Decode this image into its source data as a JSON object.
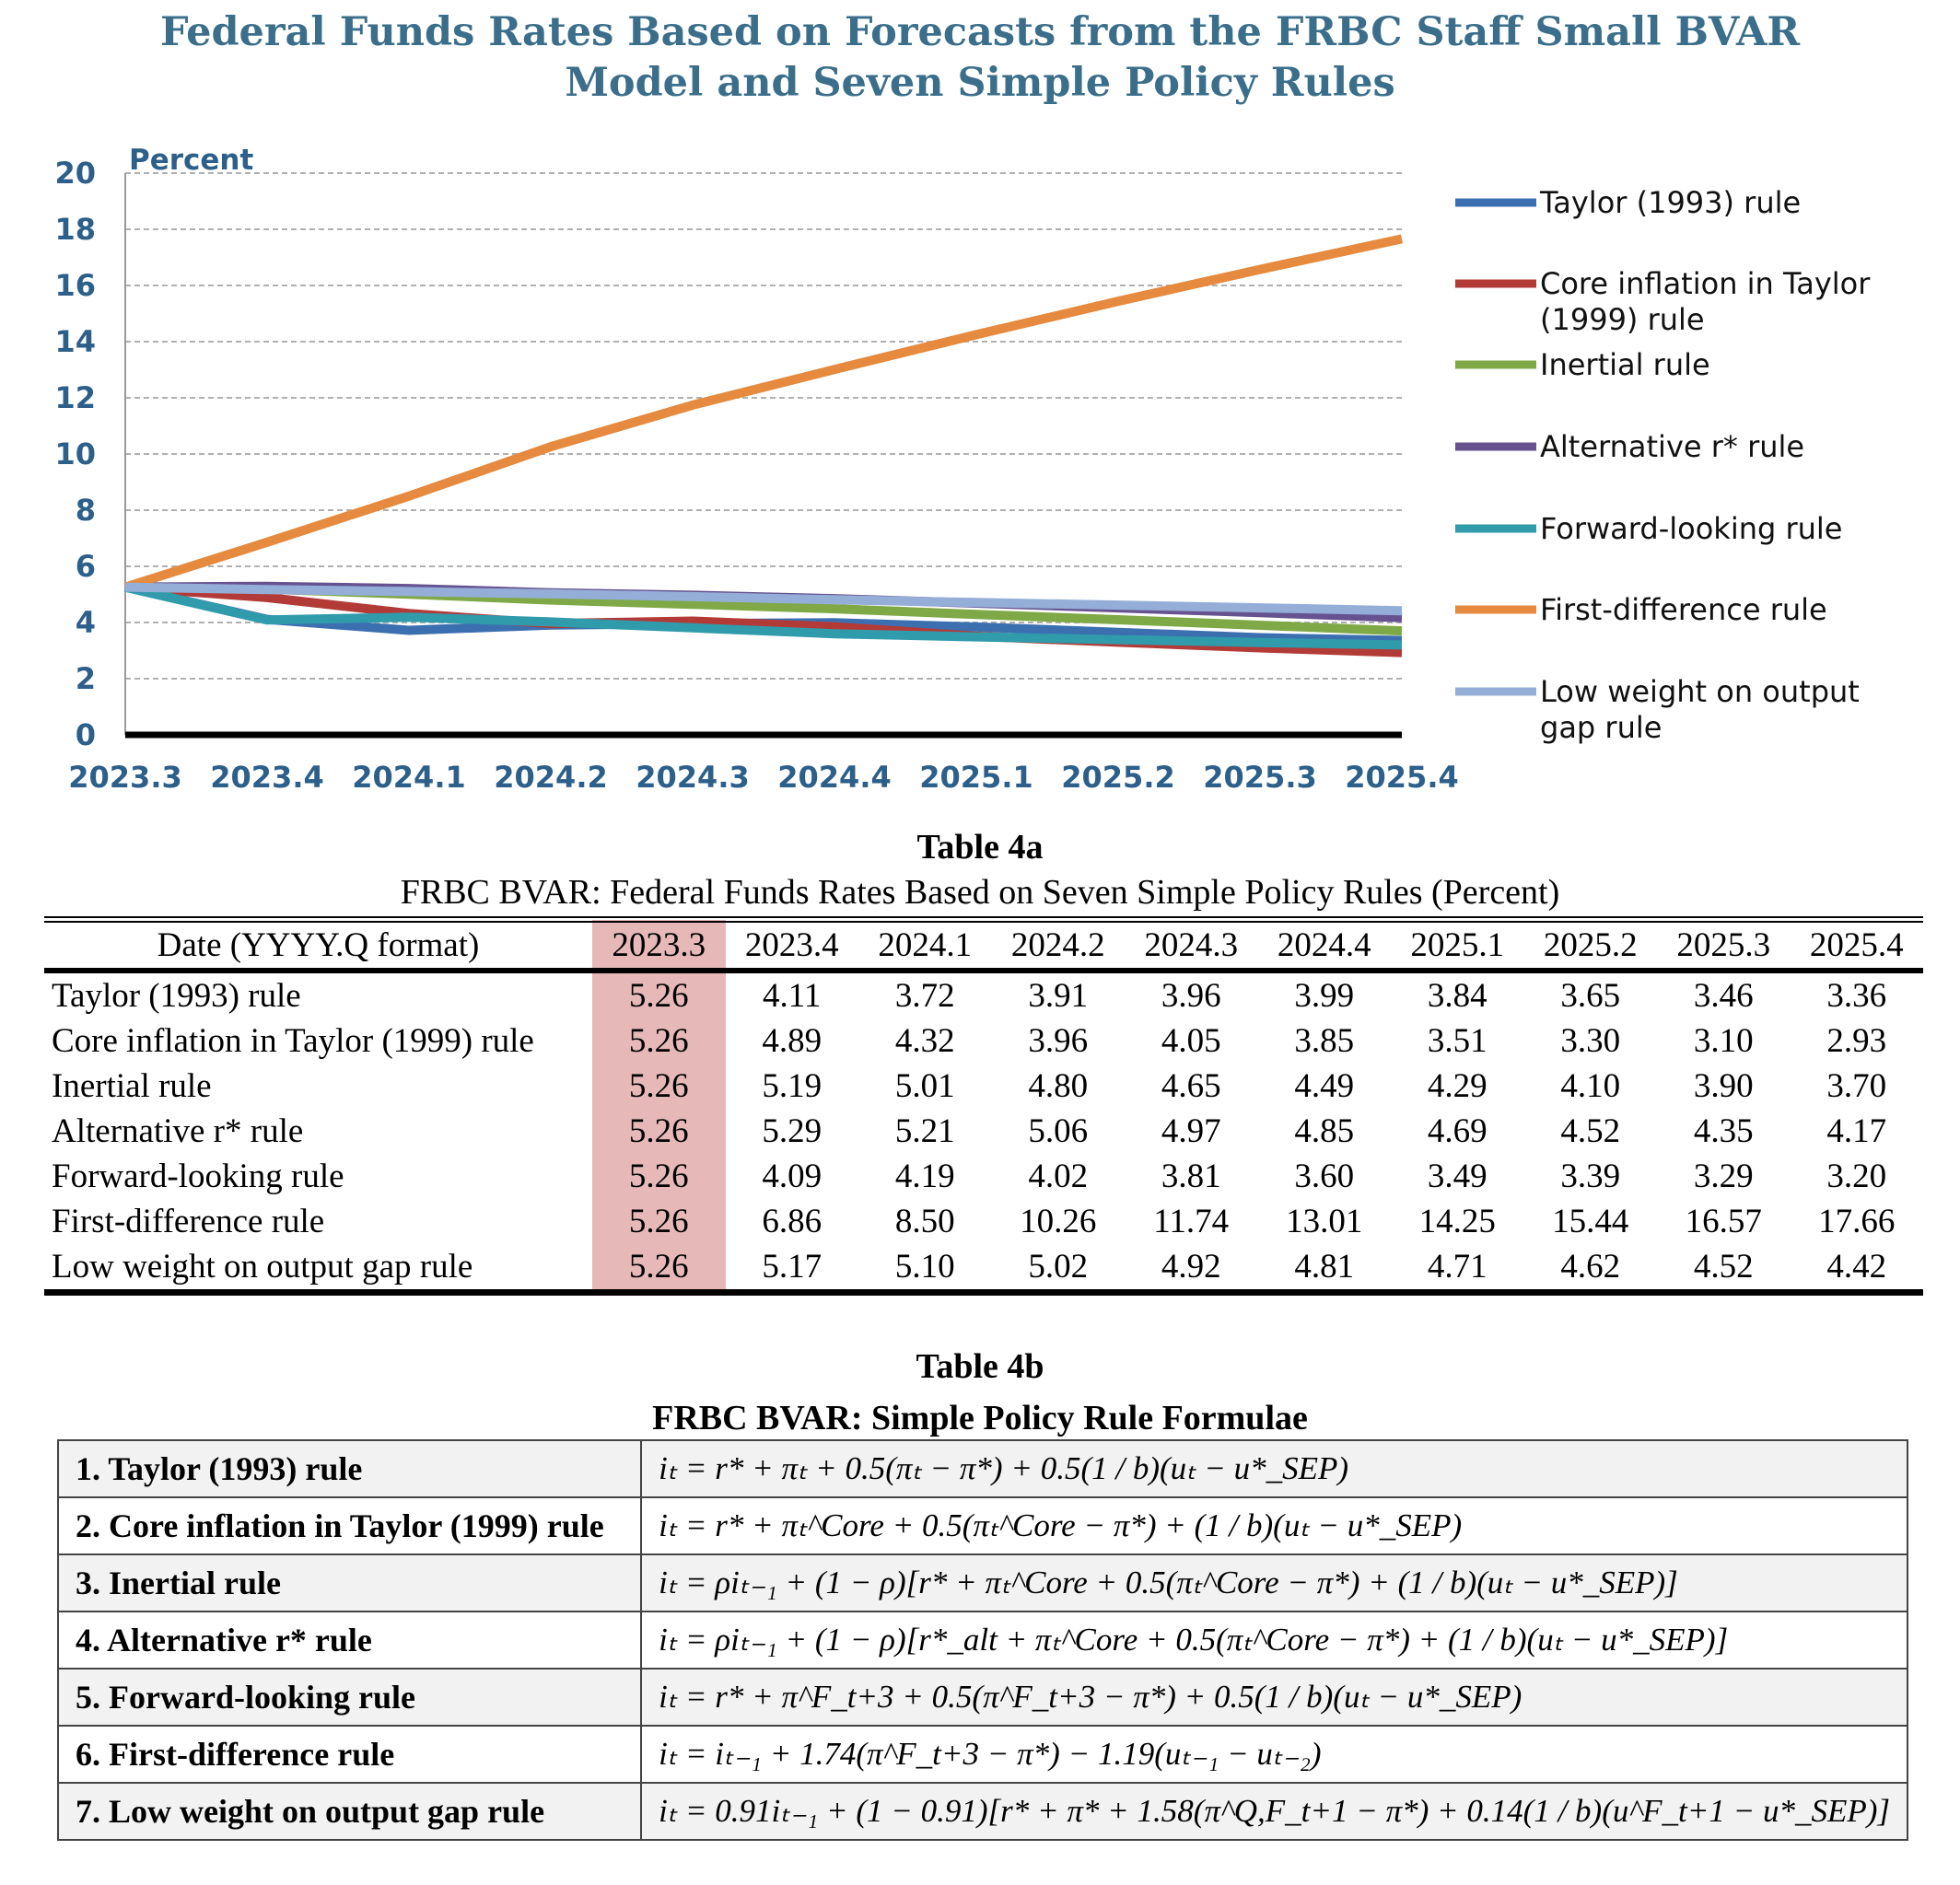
{
  "chart_data": {
    "type": "line",
    "title_lines": [
      "Federal Funds Rates Based on Forecasts from the FRBC Staff Small BVAR",
      "Model and Seven Simple Policy Rules"
    ],
    "ylabel": "Percent",
    "ylim": [
      0,
      20
    ],
    "yticks": [
      0,
      2,
      4,
      6,
      8,
      10,
      12,
      14,
      16,
      18,
      20
    ],
    "grid": true,
    "legend": "right",
    "x": [
      "2023.3",
      "2023.4",
      "2024.1",
      "2024.2",
      "2024.3",
      "2024.4",
      "2025.1",
      "2025.2",
      "2025.3",
      "2025.4"
    ],
    "series": [
      {
        "name": "Taylor (1993) rule",
        "color": "#3b6fb0",
        "values": [
          5.26,
          4.11,
          3.72,
          3.91,
          3.96,
          3.99,
          3.84,
          3.65,
          3.46,
          3.36
        ]
      },
      {
        "name": "Core inflation in Taylor (1999) rule",
        "color": "#b23b38",
        "values": [
          5.26,
          4.89,
          4.32,
          3.96,
          4.05,
          3.85,
          3.51,
          3.3,
          3.1,
          2.93
        ]
      },
      {
        "name": "Inertial rule",
        "color": "#7fa846",
        "values": [
          5.26,
          5.19,
          5.01,
          4.8,
          4.65,
          4.49,
          4.29,
          4.1,
          3.9,
          3.7
        ]
      },
      {
        "name": "Alternative r* rule",
        "color": "#66528f",
        "values": [
          5.26,
          5.29,
          5.21,
          5.06,
          4.97,
          4.85,
          4.69,
          4.52,
          4.35,
          4.17
        ]
      },
      {
        "name": "Forward-looking rule",
        "color": "#2f9bab",
        "values": [
          5.26,
          4.09,
          4.19,
          4.02,
          3.81,
          3.6,
          3.49,
          3.39,
          3.29,
          3.2
        ]
      },
      {
        "name": "First-difference rule",
        "color": "#e58a3e",
        "values": [
          5.26,
          6.86,
          8.5,
          10.26,
          11.74,
          13.01,
          14.25,
          15.44,
          16.57,
          17.66
        ]
      },
      {
        "name": "Low weight on output gap rule",
        "color": "#94aed8",
        "values": [
          5.26,
          5.17,
          5.1,
          5.02,
          4.92,
          4.81,
          4.71,
          4.62,
          4.52,
          4.42
        ]
      }
    ],
    "legend_lines": [
      [
        "Taylor (1993) rule"
      ],
      [
        "Core inflation in Taylor",
        "(1999) rule"
      ],
      [
        "Inertial rule"
      ],
      [
        "Alternative r* rule"
      ],
      [
        "Forward-looking rule"
      ],
      [
        "First-difference rule"
      ],
      [
        "Low weight on output",
        "gap rule"
      ]
    ]
  },
  "table4a": {
    "title": "Table 4a",
    "subtitle": "FRBC BVAR: Federal Funds Rates Based on Seven Simple Policy Rules (Percent)",
    "header_label": "Date (YYYY.Q format)",
    "columns": [
      "2023.3",
      "2023.4",
      "2024.1",
      "2024.2",
      "2024.3",
      "2024.4",
      "2025.1",
      "2025.2",
      "2025.3",
      "2025.4"
    ],
    "highlight_color": "#e6b8b8",
    "rows": [
      {
        "name": "Taylor (1993) rule",
        "values": [
          "5.26",
          "4.11",
          "3.72",
          "3.91",
          "3.96",
          "3.99",
          "3.84",
          "3.65",
          "3.46",
          "3.36"
        ]
      },
      {
        "name": "Core inflation in Taylor (1999) rule",
        "values": [
          "5.26",
          "4.89",
          "4.32",
          "3.96",
          "4.05",
          "3.85",
          "3.51",
          "3.30",
          "3.10",
          "2.93"
        ]
      },
      {
        "name": "Inertial rule",
        "values": [
          "5.26",
          "5.19",
          "5.01",
          "4.80",
          "4.65",
          "4.49",
          "4.29",
          "4.10",
          "3.90",
          "3.70"
        ]
      },
      {
        "name": "Alternative r* rule",
        "values": [
          "5.26",
          "5.29",
          "5.21",
          "5.06",
          "4.97",
          "4.85",
          "4.69",
          "4.52",
          "4.35",
          "4.17"
        ]
      },
      {
        "name": "Forward-looking rule",
        "values": [
          "5.26",
          "4.09",
          "4.19",
          "4.02",
          "3.81",
          "3.60",
          "3.49",
          "3.39",
          "3.29",
          "3.20"
        ]
      },
      {
        "name": "First-difference rule",
        "values": [
          "5.26",
          "6.86",
          "8.50",
          "10.26",
          "11.74",
          "13.01",
          "14.25",
          "15.44",
          "16.57",
          "17.66"
        ]
      },
      {
        "name": "Low weight on output gap rule",
        "values": [
          "5.26",
          "5.17",
          "5.10",
          "5.02",
          "4.92",
          "4.81",
          "4.71",
          "4.62",
          "4.52",
          "4.42"
        ]
      }
    ]
  },
  "table4b": {
    "title": "Table 4b",
    "subtitle": "FRBC BVAR: Simple Policy Rule Formulae",
    "rows": [
      {
        "rule": "1. Taylor (1993) rule",
        "formula": "iₜ = r* + πₜ + 0.5(πₜ − π*) + 0.5(1 / b)(uₜ − u*_SEP)"
      },
      {
        "rule": "2. Core inflation in Taylor (1999) rule",
        "formula": "iₜ = r* + πₜ^Core + 0.5(πₜ^Core − π*) + (1 / b)(uₜ − u*_SEP)"
      },
      {
        "rule": "3. Inertial rule",
        "formula": "iₜ = ρiₜ₋₁ + (1 − ρ)[r* + πₜ^Core + 0.5(πₜ^Core − π*) + (1 / b)(uₜ − u*_SEP)]"
      },
      {
        "rule": "4. Alternative r* rule",
        "formula": "iₜ = ρiₜ₋₁ + (1 − ρ)[r*_alt + πₜ^Core + 0.5(πₜ^Core − π*) + (1 / b)(uₜ − u*_SEP)]"
      },
      {
        "rule": "5. Forward-looking rule",
        "formula": "iₜ = r* + π^F_t+3 + 0.5(π^F_t+3 − π*) + 0.5(1 / b)(uₜ − u*_SEP)"
      },
      {
        "rule": "6. First-difference rule",
        "formula": "iₜ = iₜ₋₁ + 1.74(π^F_t+3 − π*) − 1.19(uₜ₋₁ − uₜ₋₂)"
      },
      {
        "rule": "7. Low weight on output gap rule",
        "formula": "iₜ = 0.91iₜ₋₁ + (1 − 0.91)[r* + π* + 1.58(π^Q,F_t+1 − π*) + 0.14(1 / b)(u^F_t+1 − u*_SEP)]"
      }
    ]
  }
}
